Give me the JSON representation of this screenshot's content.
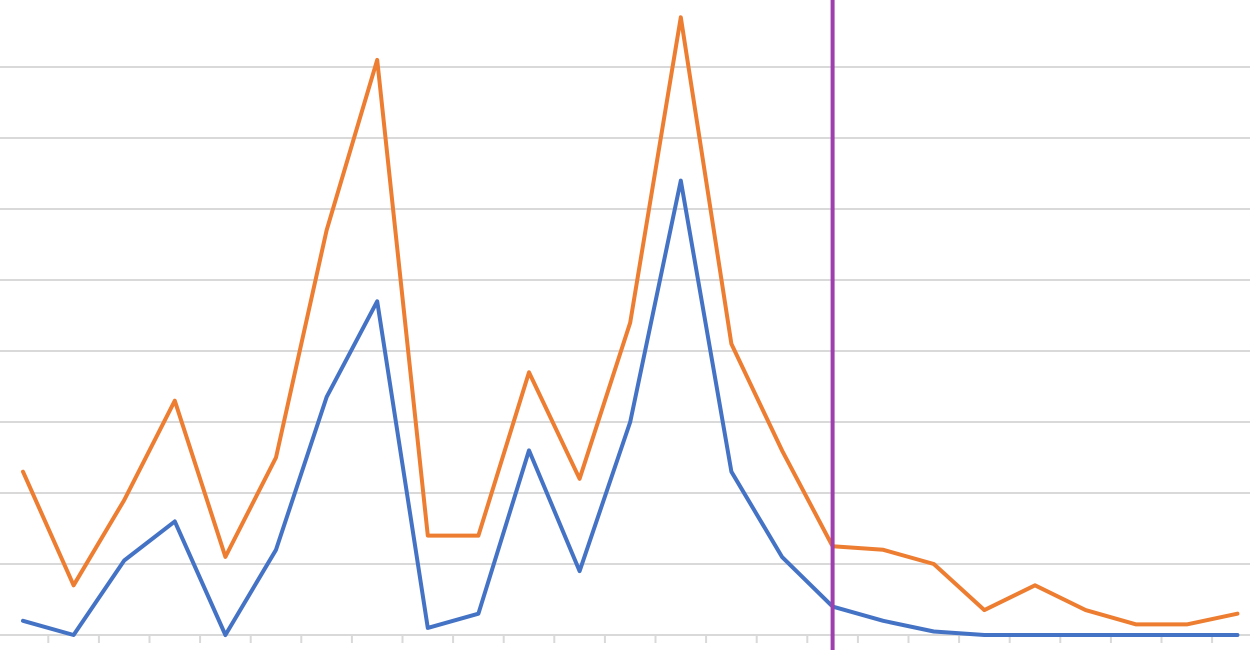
{
  "chart_data": {
    "type": "line",
    "title": "",
    "xlabel": "",
    "ylabel": "",
    "x_count": 25,
    "ylim": [
      0,
      9
    ],
    "y_gridlines": [
      0,
      1,
      2,
      3,
      4,
      5,
      6,
      7,
      8,
      9
    ],
    "grid": "horizontal",
    "legend": "none",
    "series": [
      {
        "color": "#ed7d31",
        "values": [
          2.3,
          0.7,
          1.9,
          3.3,
          1.1,
          2.5,
          5.7,
          8.1,
          1.4,
          1.4,
          3.7,
          2.2,
          4.4,
          8.7,
          4.1,
          2.6,
          1.25,
          1.2,
          1.0,
          0.35,
          0.7,
          0.35,
          0.15,
          0.15,
          0.3
        ]
      },
      {
        "color": "#4472c4",
        "values": [
          0.2,
          0.0,
          1.05,
          1.6,
          0.0,
          1.2,
          3.35,
          4.7,
          0.1,
          0.3,
          2.6,
          0.9,
          3.0,
          6.4,
          2.3,
          1.1,
          0.4,
          0.2,
          0.05,
          0.0,
          0.0,
          0.0,
          0.0,
          0.0,
          0.0
        ]
      }
    ],
    "vertical_marker": {
      "color": "#9e3fad",
      "at_index": 16
    }
  }
}
